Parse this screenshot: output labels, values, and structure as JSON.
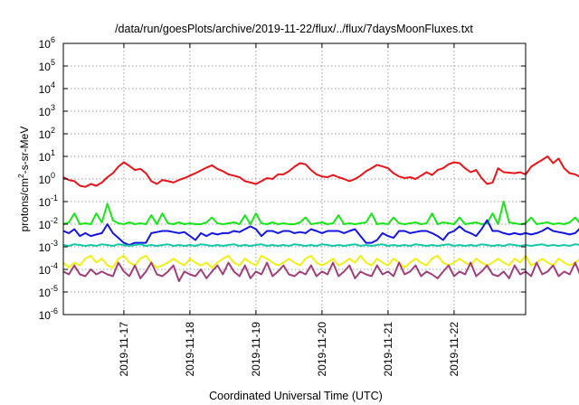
{
  "chart_data": {
    "type": "line",
    "title": "/data/run/goesPlots/archive/2019-11-22/flux/../flux/7daysMoonFluxes.txt",
    "xlabel": "Coordinated Universal Time (UTC)",
    "ylabel_parts": [
      "protons/cm",
      "2",
      "-s-sr-MeV"
    ],
    "yscale": "log",
    "ylim_exp": [
      -6,
      6
    ],
    "y_tick_exponents": [
      -6,
      -5,
      -4,
      -3,
      -2,
      -1,
      0,
      1,
      2,
      3,
      4,
      5,
      6
    ],
    "y_tick_base": "10",
    "xlim": [
      "2019-11-16T02:00",
      "2019-11-23T02:00"
    ],
    "x_ticks": [
      {
        "at": "2019-11-17T00:00",
        "label": "2019-11-17"
      },
      {
        "at": "2019-11-18T00:00",
        "label": "2019-11-18"
      },
      {
        "at": "2019-11-19T00:00",
        "label": "2019-11-19"
      },
      {
        "at": "2019-11-20T00:00",
        "label": "2019-11-20"
      },
      {
        "at": "2019-11-21T00:00",
        "label": "2019-11-21"
      },
      {
        "at": "2019-11-22T00:00",
        "label": "2019-11-22"
      }
    ],
    "grid": true,
    "x_start": "2019-11-16T02:00",
    "x_step_hours": 2,
    "series": [
      {
        "color": "#e8141a",
        "values": [
          1.2,
          0.9,
          0.8,
          0.5,
          0.45,
          0.6,
          0.5,
          0.7,
          1.2,
          1.8,
          3.5,
          5.5,
          3.8,
          2.5,
          2.8,
          1.8,
          0.8,
          0.6,
          0.9,
          0.8,
          0.7,
          0.9,
          1.1,
          1.4,
          1.8,
          2.4,
          3.2,
          4.0,
          2.8,
          2.2,
          1.6,
          1.4,
          1.2,
          0.8,
          0.7,
          0.6,
          0.8,
          1.1,
          1.0,
          1.6,
          1.6,
          2.2,
          3.5,
          5.0,
          4.5,
          2.5,
          1.6,
          1.3,
          1.2,
          1.5,
          1.2,
          1.0,
          0.8,
          1.0,
          1.4,
          2.2,
          3.0,
          4.2,
          3.6,
          3.0,
          1.8,
          1.3,
          1.1,
          1.2,
          1.0,
          1.4,
          2.0,
          1.5,
          2.5,
          3.0,
          4.5,
          5.5,
          5.0,
          3.0,
          2.0,
          2.5,
          1.1,
          0.6,
          0.7,
          3.0,
          2.0,
          1.9,
          1.8,
          2.0,
          1.6,
          3.5,
          5.0,
          7.0,
          10.0,
          5.0,
          8.0,
          3.0,
          1.8,
          1.6,
          1.2,
          1.3,
          1.0,
          0.8,
          5.0,
          4.0,
          1.7,
          2.0,
          3.5,
          6.0,
          5.5,
          4.5,
          3.2,
          3.0,
          2.6,
          3.0
        ]
      },
      {
        "color": "#19e619",
        "values": [
          0.01,
          0.012,
          0.03,
          0.01,
          0.011,
          0.01,
          0.03,
          0.012,
          0.08,
          0.015,
          0.011,
          0.01,
          0.012,
          0.01,
          0.011,
          0.01,
          0.025,
          0.01,
          0.03,
          0.011,
          0.01,
          0.012,
          0.01,
          0.011,
          0.01,
          0.01,
          0.012,
          0.02,
          0.011,
          0.01,
          0.011,
          0.012,
          0.01,
          0.025,
          0.01,
          0.03,
          0.011,
          0.01,
          0.012,
          0.01,
          0.011,
          0.01,
          0.01,
          0.012,
          0.02,
          0.01,
          0.011,
          0.012,
          0.01,
          0.011,
          0.025,
          0.01,
          0.011,
          0.01,
          0.011,
          0.012,
          0.03,
          0.01,
          0.011,
          0.01,
          0.02,
          0.011,
          0.01,
          0.011,
          0.012,
          0.01,
          0.011,
          0.03,
          0.01,
          0.012,
          0.011,
          0.01,
          0.02,
          0.01,
          0.011,
          0.012,
          0.01,
          0.011,
          0.03,
          0.01,
          0.1,
          0.012,
          0.011,
          0.01,
          0.011,
          0.02,
          0.01,
          0.011,
          0.012,
          0.01,
          0.011,
          0.01,
          0.012,
          0.02,
          0.01,
          0.011,
          0.012,
          0.01,
          0.06,
          0.011,
          0.01,
          0.012,
          0.011,
          0.01,
          0.05,
          0.012,
          0.01,
          0.011,
          0.01,
          0.011
        ]
      },
      {
        "color": "#1515e0",
        "values": [
          0.005,
          0.004,
          0.006,
          0.003,
          0.004,
          0.003,
          0.0035,
          0.004,
          0.01,
          0.004,
          0.0025,
          0.0015,
          0.0012,
          0.0015,
          0.0015,
          0.0015,
          0.004,
          0.0045,
          0.005,
          0.005,
          0.0045,
          0.004,
          0.0045,
          0.003,
          0.002,
          0.004,
          0.003,
          0.004,
          0.0035,
          0.004,
          0.004,
          0.005,
          0.0045,
          0.006,
          0.008,
          0.006,
          0.003,
          0.005,
          0.005,
          0.004,
          0.005,
          0.005,
          0.004,
          0.0045,
          0.004,
          0.006,
          0.005,
          0.004,
          0.005,
          0.005,
          0.005,
          0.004,
          0.005,
          0.006,
          0.003,
          0.0015,
          0.0015,
          0.002,
          0.004,
          0.003,
          0.0025,
          0.005,
          0.005,
          0.004,
          0.0045,
          0.005,
          0.005,
          0.004,
          0.003,
          0.002,
          0.004,
          0.005,
          0.008,
          0.005,
          0.004,
          0.003,
          0.006,
          0.015,
          0.005,
          0.005,
          0.004,
          0.0035,
          0.004,
          0.0035,
          0.004,
          0.0035,
          0.004,
          0.005,
          0.007,
          0.005,
          0.0045,
          0.004,
          0.0035,
          0.004,
          0.007,
          0.0035,
          0.004,
          0.005,
          0.007,
          0.003,
          0.004,
          0.0025,
          0.0025,
          0.0035,
          0.004,
          0.004,
          0.005,
          0.006,
          0.005,
          0.0045
        ]
      },
      {
        "color": "#16c9a6",
        "values": [
          0.0012,
          0.0011,
          0.0013,
          0.0012,
          0.0011,
          0.0012,
          0.0011,
          0.0013,
          0.0012,
          0.0011,
          0.0013,
          0.0012,
          0.0011,
          0.0012,
          0.0013,
          0.0011,
          0.0012,
          0.0011,
          0.0012,
          0.0013,
          0.0011,
          0.0012,
          0.0011,
          0.0012,
          0.0011,
          0.0013,
          0.0012,
          0.0011,
          0.0012,
          0.0011,
          0.0012,
          0.0013,
          0.0011,
          0.0012,
          0.0011,
          0.0012,
          0.0013,
          0.0011,
          0.0012,
          0.0011,
          0.0012,
          0.0011,
          0.0013,
          0.0012,
          0.0011,
          0.0012,
          0.0011,
          0.0013,
          0.0012,
          0.0011,
          0.0012,
          0.0011,
          0.0012,
          0.0013,
          0.0011,
          0.0012,
          0.0011,
          0.0012,
          0.0013,
          0.0011,
          0.0012,
          0.0011,
          0.0012,
          0.0011,
          0.0013,
          0.0012,
          0.0011,
          0.0012,
          0.0011,
          0.0012,
          0.0013,
          0.0011,
          0.0012,
          0.0011,
          0.0012,
          0.0011,
          0.0013,
          0.0012,
          0.0011,
          0.0012,
          0.0011,
          0.0013,
          0.0012,
          0.0011,
          0.0012,
          0.0011,
          0.0012,
          0.0013,
          0.0011,
          0.0012,
          0.0011,
          0.0012,
          0.0011,
          0.0013,
          0.0012,
          0.0011,
          0.0012,
          0.0011,
          0.0012,
          0.0013,
          0.0011,
          0.0012,
          0.0011,
          0.0012,
          0.0011,
          0.0013,
          0.0012,
          0.0011,
          0.0012,
          0.0011
        ]
      },
      {
        "color": "#f0f014",
        "values": [
          0.0002,
          0.00012,
          0.0002,
          0.00015,
          0.0003,
          0.0004,
          0.0002,
          0.0003,
          0.00015,
          0.00012,
          0.0003,
          0.0004,
          0.0002,
          0.00015,
          0.0003,
          0.0004,
          0.0002,
          0.00012,
          0.00015,
          0.0002,
          0.0003,
          0.0002,
          0.00015,
          0.0003,
          0.0002,
          0.00015,
          0.0002,
          0.00012,
          0.0002,
          0.0003,
          0.0004,
          0.0002,
          0.00015,
          0.0003,
          0.0002,
          0.00015,
          0.0004,
          0.0003,
          0.0002,
          0.00015,
          0.0002,
          0.0003,
          0.0002,
          0.00015,
          0.0003,
          0.0004,
          0.0002,
          0.00015,
          0.0002,
          0.0003,
          0.00015,
          0.0002,
          0.0003,
          0.0002,
          0.0004,
          0.0002,
          0.00015,
          0.0003,
          0.0002,
          0.00015,
          0.0003,
          0.0002,
          0.00012,
          0.0002,
          0.0003,
          0.0002,
          0.00015,
          0.0003,
          0.0004,
          0.0002,
          0.00015,
          0.0002,
          0.0003,
          0.0002,
          0.00015,
          0.0003,
          0.0002,
          0.00015,
          0.0002,
          0.0003,
          0.0002,
          0.00015,
          0.0003,
          0.0002,
          0.0004,
          0.00015,
          0.0002,
          0.0003,
          0.0002,
          0.00015,
          0.0003,
          0.0002,
          0.00015,
          0.0002,
          0.0003,
          0.0002,
          0.00015,
          0.0002,
          0.0003,
          0.0002,
          0.00015,
          0.0003,
          0.0002,
          0.00015,
          0.0002,
          0.0003,
          0.0002,
          0.00015,
          0.0002,
          0.0003
        ]
      },
      {
        "color": "#a03f7a",
        "values": [
          8e-05,
          6e-05,
          0.00015,
          6e-05,
          5e-05,
          0.0001,
          6e-05,
          8e-05,
          6e-05,
          5e-05,
          0.0002,
          8e-05,
          5e-05,
          0.00015,
          4e-05,
          8e-05,
          0.0002,
          6e-05,
          5e-05,
          8e-05,
          0.00015,
          3e-05,
          8e-05,
          6e-05,
          5e-05,
          0.0001,
          4e-05,
          8e-05,
          0.00015,
          6e-05,
          0.0002,
          8e-05,
          5e-05,
          0.00015,
          4e-05,
          8e-05,
          6e-05,
          0.0002,
          5e-05,
          8e-05,
          0.00015,
          6e-05,
          5e-05,
          8e-05,
          6e-05,
          0.00015,
          5e-05,
          8e-05,
          6e-05,
          0.0002,
          5e-05,
          8e-05,
          0.00015,
          4e-05,
          8e-05,
          6e-05,
          5e-05,
          0.00015,
          6e-05,
          8e-05,
          5e-05,
          0.0002,
          6e-05,
          8e-05,
          0.00015,
          5e-05,
          8e-05,
          6e-05,
          4e-05,
          8e-05,
          0.00015,
          5e-05,
          8e-05,
          6e-05,
          0.0002,
          5e-05,
          8e-05,
          0.00015,
          6e-05,
          5e-05,
          8e-05,
          4e-05,
          0.00015,
          6e-05,
          8e-05,
          5e-05,
          0.0002,
          6e-05,
          8e-05,
          0.00015,
          5e-05,
          8e-05,
          6e-05,
          0.0002,
          5e-05,
          8e-05,
          0.00015,
          6e-05,
          4e-05,
          8e-05,
          0.00015,
          6e-05,
          5e-05,
          8e-05,
          0.00015,
          6e-05,
          3e-05,
          8e-05,
          0.00015,
          6e-05
        ]
      }
    ]
  }
}
